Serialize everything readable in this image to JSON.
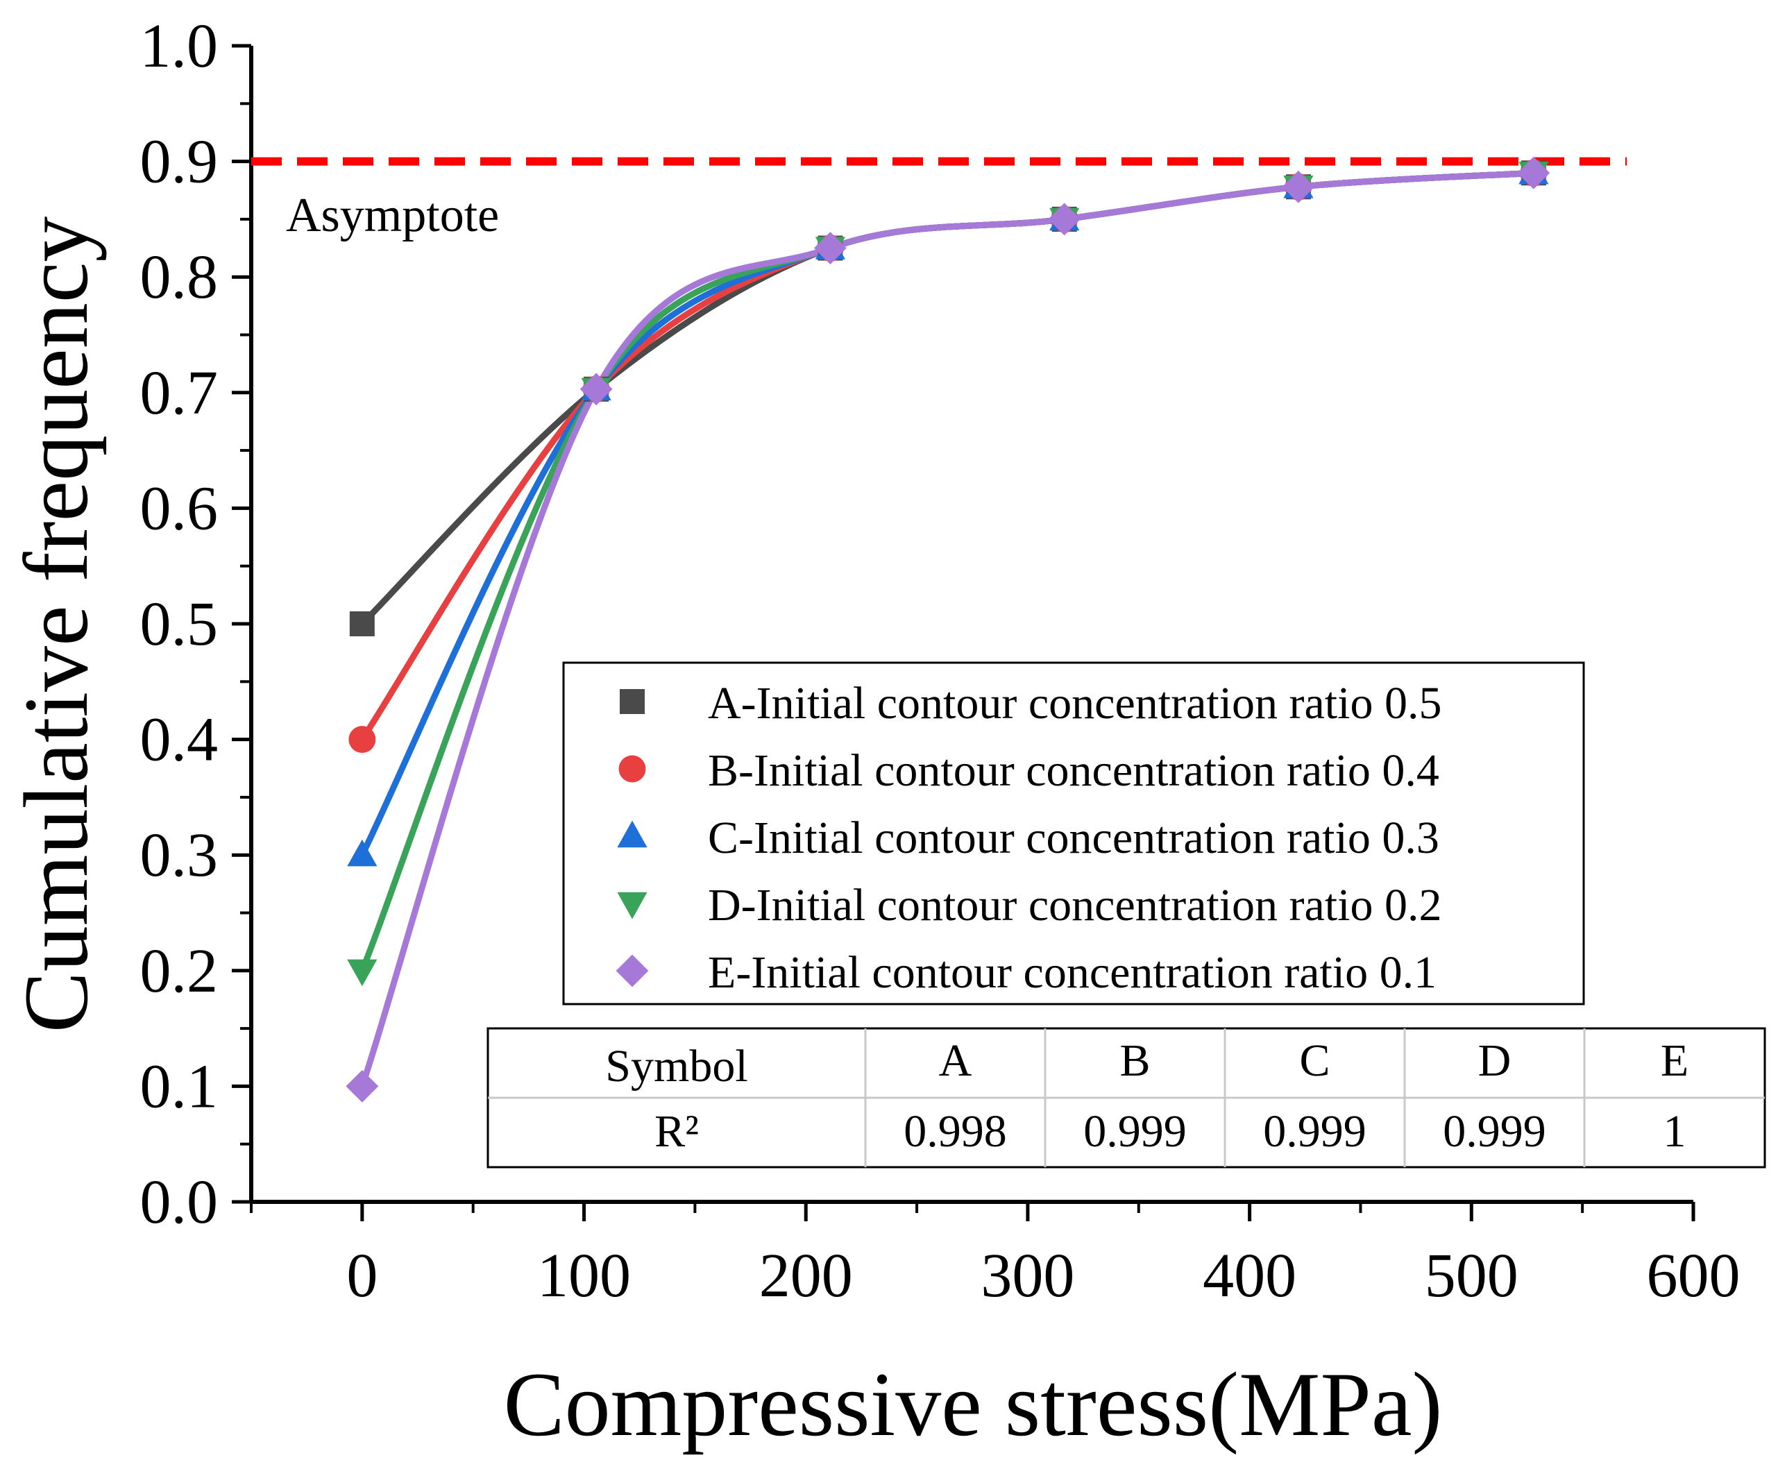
{
  "chart_data": {
    "type": "line",
    "xlabel": "Compressive stress(MPa)",
    "ylabel": "Cumulative frequency",
    "xlim": [
      -50,
      600
    ],
    "ylim": [
      0.0,
      1.0
    ],
    "x_ticks": [
      0,
      100,
      200,
      300,
      400,
      500,
      600
    ],
    "x_tick_labels": [
      "0",
      "100",
      "200",
      "300",
      "400",
      "500",
      "600"
    ],
    "y_ticks": [
      0.0,
      0.1,
      0.2,
      0.3,
      0.4,
      0.5,
      0.6,
      0.7,
      0.8,
      0.9,
      1.0
    ],
    "y_tick_labels": [
      "0.0",
      "0.1",
      "0.2",
      "0.3",
      "0.4",
      "0.5",
      "0.6",
      "0.7",
      "0.8",
      "0.9",
      "1.0"
    ],
    "x": [
      0,
      105.5,
      211,
      316.5,
      422,
      528
    ],
    "asymptote": {
      "y": 0.9,
      "label": "Asymptote",
      "color": "#ff0000"
    },
    "series": [
      {
        "name": "A-Initial contour concentration ratio 0.5",
        "marker": "square",
        "color": "#4a4a4a",
        "values": [
          0.5,
          0.703,
          0.825,
          0.85,
          0.878,
          0.89
        ]
      },
      {
        "name": "B-Initial contour concentration ratio 0.4",
        "marker": "circle",
        "color": "#e84040",
        "values": [
          0.4,
          0.703,
          0.825,
          0.85,
          0.878,
          0.89
        ]
      },
      {
        "name": "C-Initial contour concentration ratio 0.3",
        "marker": "triangle-up",
        "color": "#1f6fd8",
        "values": [
          0.3,
          0.703,
          0.825,
          0.85,
          0.878,
          0.89
        ]
      },
      {
        "name": "D-Initial contour concentration ratio 0.2",
        "marker": "triangle-down",
        "color": "#3aa35a",
        "values": [
          0.2,
          0.703,
          0.825,
          0.85,
          0.878,
          0.89
        ]
      },
      {
        "name": "E-Initial contour concentration ratio 0.1",
        "marker": "diamond",
        "color": "#a678d8",
        "values": [
          0.1,
          0.703,
          0.825,
          0.85,
          0.878,
          0.89
        ]
      }
    ],
    "fit_table": {
      "header": [
        "Symbol",
        "A",
        "B",
        "C",
        "D",
        "E"
      ],
      "row": [
        "R²",
        "0.998",
        "0.999",
        "0.999",
        "0.999",
        "1"
      ]
    },
    "legend_position": "center-right"
  }
}
